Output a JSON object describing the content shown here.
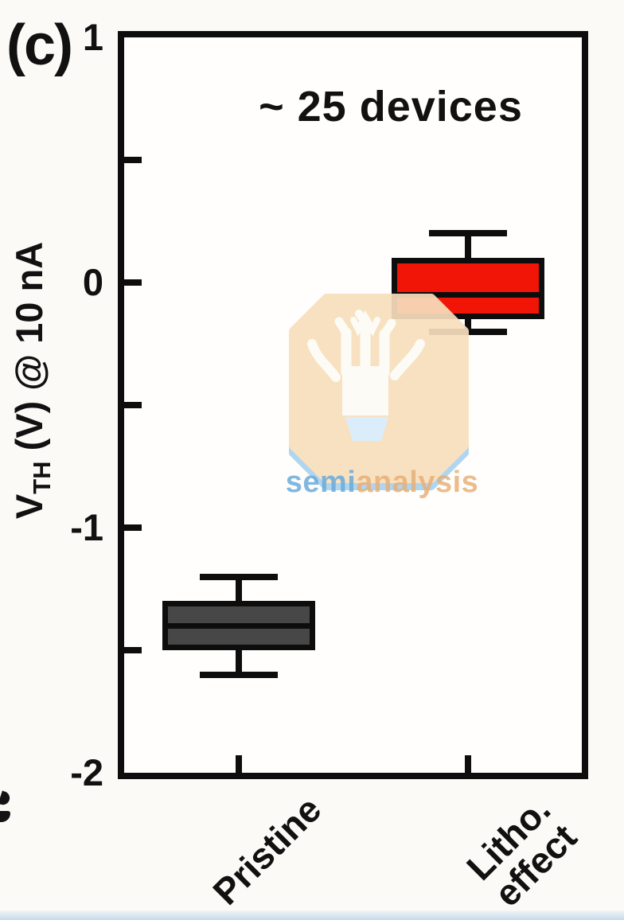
{
  "panel_label": "(c)",
  "annotation": "~ 25 devices",
  "yaxis_title": {
    "prefix": "V",
    "subscript": "TH",
    "suffix": " (V) @ 10 nA"
  },
  "watermark": {
    "semi": "semi",
    "analysis": "analysis"
  },
  "colors": {
    "axis": "#0d0d0d",
    "pristine_box_fill": "#474747",
    "litho_box_fill": "#f01507",
    "watermark_peach": "#f8dfbd",
    "watermark_blue": "#a9d2ee",
    "watermark_pot": "#d8ecfa",
    "watermark_tree": "#fdfbf6",
    "watermark_text_blue": "#5fa5d8",
    "watermark_text_orange": "#e6aa6e",
    "bottom_strip": "#b9d4ea"
  },
  "chart_data": {
    "type": "box",
    "title": "",
    "annotation": "~ 25 devices",
    "ylabel": "V_TH (V) @ 10 nA",
    "xlabel": "",
    "ylim": [
      -2,
      1
    ],
    "yticks_labeled": [
      1,
      0,
      -1,
      -2
    ],
    "yticks_minor": [
      0.5,
      -0.5,
      -1.5
    ],
    "grid": false,
    "legend": "none",
    "categories": [
      "Pristine",
      "Litho.\neffect"
    ],
    "series": [
      {
        "name": "Pristine",
        "color": "#474747",
        "whisker_low": -1.6,
        "q1": -1.5,
        "median": -1.4,
        "q3": -1.3,
        "whisker_high": -1.2
      },
      {
        "name": "Litho. effect",
        "color": "#f01507",
        "whisker_low": -0.2,
        "q1": -0.15,
        "median": -0.05,
        "q3": 0.1,
        "whisker_high": 0.2
      }
    ]
  }
}
